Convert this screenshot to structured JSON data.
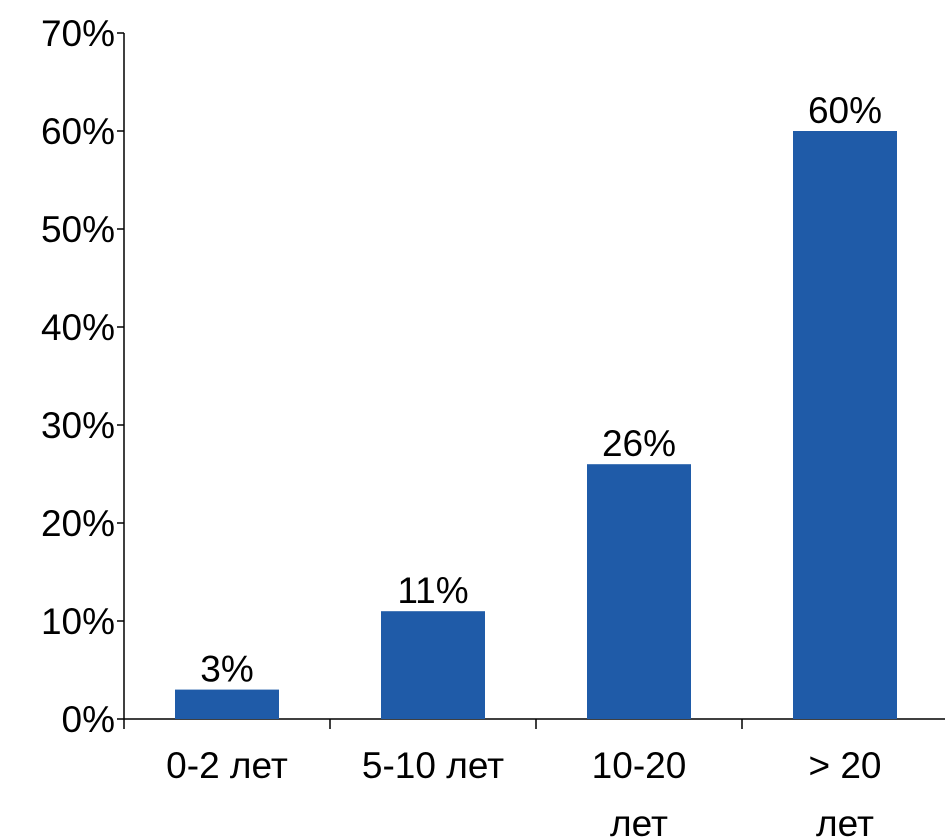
{
  "chart_data": {
    "type": "bar",
    "title": "",
    "xlabel": "",
    "ylabel": "",
    "categories": [
      "0-2 лет",
      "5-10 лет",
      "10-20 лет",
      "> 20 лет"
    ],
    "category_lines": [
      [
        "0-2 лет"
      ],
      [
        "5-10 лет"
      ],
      [
        "10-20",
        "лет"
      ],
      [
        "> 20",
        "лет"
      ]
    ],
    "values": [
      3,
      11,
      26,
      60
    ],
    "value_labels": [
      "3%",
      "11%",
      "26%",
      "60%"
    ],
    "ylim": [
      0,
      70
    ],
    "y_ticks": [
      0,
      10,
      20,
      30,
      40,
      50,
      60,
      70
    ],
    "y_tick_labels": [
      "0%",
      "10%",
      "20%",
      "30%",
      "40%",
      "50%",
      "60%",
      "70%"
    ],
    "bar_color": "#1f5ba8",
    "grid": false,
    "legend": "none"
  }
}
